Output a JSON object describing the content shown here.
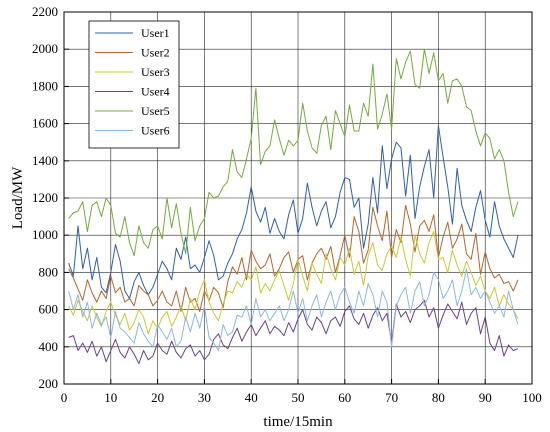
{
  "chart_data": {
    "type": "line",
    "xlabel": "time/15min",
    "ylabel": "Load/MW",
    "xlim": [
      0,
      100
    ],
    "ylim": [
      200,
      2200
    ],
    "xticks": [
      0,
      10,
      20,
      30,
      40,
      50,
      60,
      70,
      80,
      90,
      100
    ],
    "yticks": [
      200,
      400,
      600,
      800,
      1000,
      1200,
      1400,
      1600,
      1800,
      2000,
      2200
    ],
    "grid": true,
    "legend_position": "top-left",
    "series": [
      {
        "name": "User1",
        "color": "#2e5fae",
        "values": [
          850,
          780,
          1050,
          820,
          930,
          760,
          880,
          720,
          690,
          800,
          950,
          860,
          700,
          660,
          750,
          800,
          730,
          680,
          720,
          790,
          860,
          820,
          760,
          930,
          870,
          990,
          820,
          840,
          800,
          880,
          970,
          890,
          760,
          780,
          850,
          900,
          980,
          1030,
          1120,
          1260,
          1130,
          1070,
          1150,
          1010,
          1090,
          1020,
          980,
          1110,
          1190,
          1010,
          1090,
          1280,
          1150,
          1050,
          1130,
          1180,
          1040,
          1100,
          1230,
          1310,
          1300,
          1150,
          1200,
          930,
          1060,
          1310,
          1120,
          1480,
          1250,
          1410,
          1500,
          1470,
          1210,
          1430,
          1090,
          1260,
          1370,
          1460,
          1200,
          1590,
          1420,
          1260,
          1060,
          1360,
          1160,
          1080,
          1020,
          1150,
          1240,
          1080,
          990,
          1180,
          1050,
          980,
          930,
          880,
          1000
        ]
      },
      {
        "name": "User2",
        "color": "#b5652a",
        "values": [
          820,
          770,
          710,
          650,
          760,
          690,
          640,
          700,
          660,
          780,
          690,
          720,
          640,
          660,
          620,
          730,
          700,
          680,
          620,
          650,
          700,
          640,
          620,
          700,
          590,
          720,
          640,
          660,
          590,
          700,
          650,
          720,
          690,
          610,
          750,
          830,
          790,
          880,
          760,
          920,
          860,
          820,
          840,
          900,
          780,
          820,
          880,
          910,
          800,
          870,
          890,
          760,
          850,
          900,
          930,
          870,
          940,
          800,
          890,
          1000,
          880,
          1100,
          1020,
          850,
          920,
          1150,
          1050,
          970,
          1130,
          880,
          1030,
          960,
          1160,
          1060,
          910,
          1050,
          1080,
          1020,
          1110,
          880,
          990,
          1070,
          930,
          980,
          1060,
          900,
          870,
          1010,
          790,
          910,
          820,
          770,
          790,
          740,
          750,
          700,
          760
        ]
      },
      {
        "name": "User3",
        "color": "#c9c832",
        "values": [
          620,
          570,
          650,
          590,
          540,
          620,
          560,
          510,
          590,
          640,
          570,
          520,
          580,
          490,
          530,
          600,
          560,
          470,
          540,
          500,
          560,
          590,
          510,
          560,
          620,
          540,
          660,
          600,
          700,
          760,
          640,
          580,
          540,
          630,
          700,
          690,
          750,
          720,
          790,
          760,
          830,
          690,
          740,
          700,
          760,
          810,
          730,
          650,
          740,
          870,
          780,
          700,
          850,
          790,
          740,
          900,
          820,
          760,
          880,
          840,
          930,
          790,
          860,
          730,
          890,
          960,
          840,
          810,
          900,
          940,
          880,
          990,
          870,
          780,
          1000,
          900,
          850,
          960,
          1020,
          870,
          880,
          800,
          920,
          840,
          780,
          860,
          800,
          730,
          780,
          700,
          660,
          720,
          620,
          680,
          630,
          600,
          550
        ]
      },
      {
        "name": "User4",
        "color": "#6a3f8e",
        "values": [
          450,
          460,
          380,
          420,
          370,
          430,
          350,
          400,
          320,
          380,
          440,
          370,
          340,
          400,
          360,
          310,
          380,
          330,
          350,
          420,
          380,
          360,
          430,
          370,
          340,
          390,
          410,
          350,
          380,
          330,
          360,
          440,
          470,
          410,
          390,
          450,
          500,
          430,
          480,
          520,
          460,
          500,
          540,
          470,
          510,
          490,
          460,
          530,
          480,
          550,
          600,
          520,
          490,
          560,
          530,
          470,
          540,
          560,
          510,
          590,
          620,
          550,
          520,
          580,
          500,
          570,
          610,
          540,
          580,
          420,
          630,
          560,
          590,
          530,
          600,
          620,
          650,
          560,
          610,
          500,
          570,
          630,
          590,
          550,
          640,
          520,
          580,
          610,
          470,
          560,
          420,
          380,
          460,
          350,
          410,
          380,
          390
        ]
      },
      {
        "name": "User5",
        "color": "#72ab3c",
        "values": [
          1090,
          1120,
          1130,
          1180,
          1020,
          1160,
          1180,
          1100,
          1200,
          1160,
          1010,
          990,
          1100,
          960,
          890,
          1050,
          960,
          930,
          1030,
          1050,
          980,
          1200,
          1040,
          1170,
          1010,
          900,
          1150,
          970,
          1050,
          1090,
          1230,
          1200,
          1210,
          1260,
          1290,
          1460,
          1340,
          1310,
          1410,
          1520,
          1790,
          1380,
          1450,
          1480,
          1620,
          1520,
          1430,
          1510,
          1480,
          1510,
          1710,
          1560,
          1470,
          1440,
          1590,
          1640,
          1460,
          1670,
          1600,
          1530,
          1700,
          1560,
          1560,
          1710,
          1640,
          1920,
          1570,
          1650,
          1760,
          1570,
          1950,
          1840,
          1930,
          1990,
          1810,
          1790,
          2000,
          1870,
          1980,
          1830,
          1870,
          1710,
          1830,
          1840,
          1800,
          1690,
          1670,
          1560,
          1480,
          1550,
          1520,
          1410,
          1460,
          1400,
          1230,
          1100,
          1180
        ]
      },
      {
        "name": "User6",
        "color": "#8db7e0",
        "values": [
          700,
          600,
          680,
          560,
          640,
          500,
          580,
          520,
          560,
          450,
          590,
          500,
          480,
          450,
          420,
          530,
          470,
          430,
          400,
          520,
          480,
          440,
          500,
          400,
          430,
          560,
          480,
          580,
          500,
          620,
          450,
          420,
          380,
          520,
          460,
          480,
          570,
          560,
          620,
          520,
          660,
          560,
          600,
          540,
          580,
          620,
          540,
          600,
          700,
          580,
          660,
          540,
          620,
          680,
          560,
          640,
          700,
          600,
          680,
          720,
          640,
          580,
          700,
          620,
          740,
          680,
          560,
          700,
          640,
          400,
          620,
          680,
          720,
          580,
          700,
          750,
          620,
          680,
          800,
          760,
          660,
          700,
          760,
          620,
          700,
          820,
          680,
          720,
          660,
          700,
          640,
          580,
          620,
          560,
          700,
          600,
          520
        ]
      }
    ]
  }
}
